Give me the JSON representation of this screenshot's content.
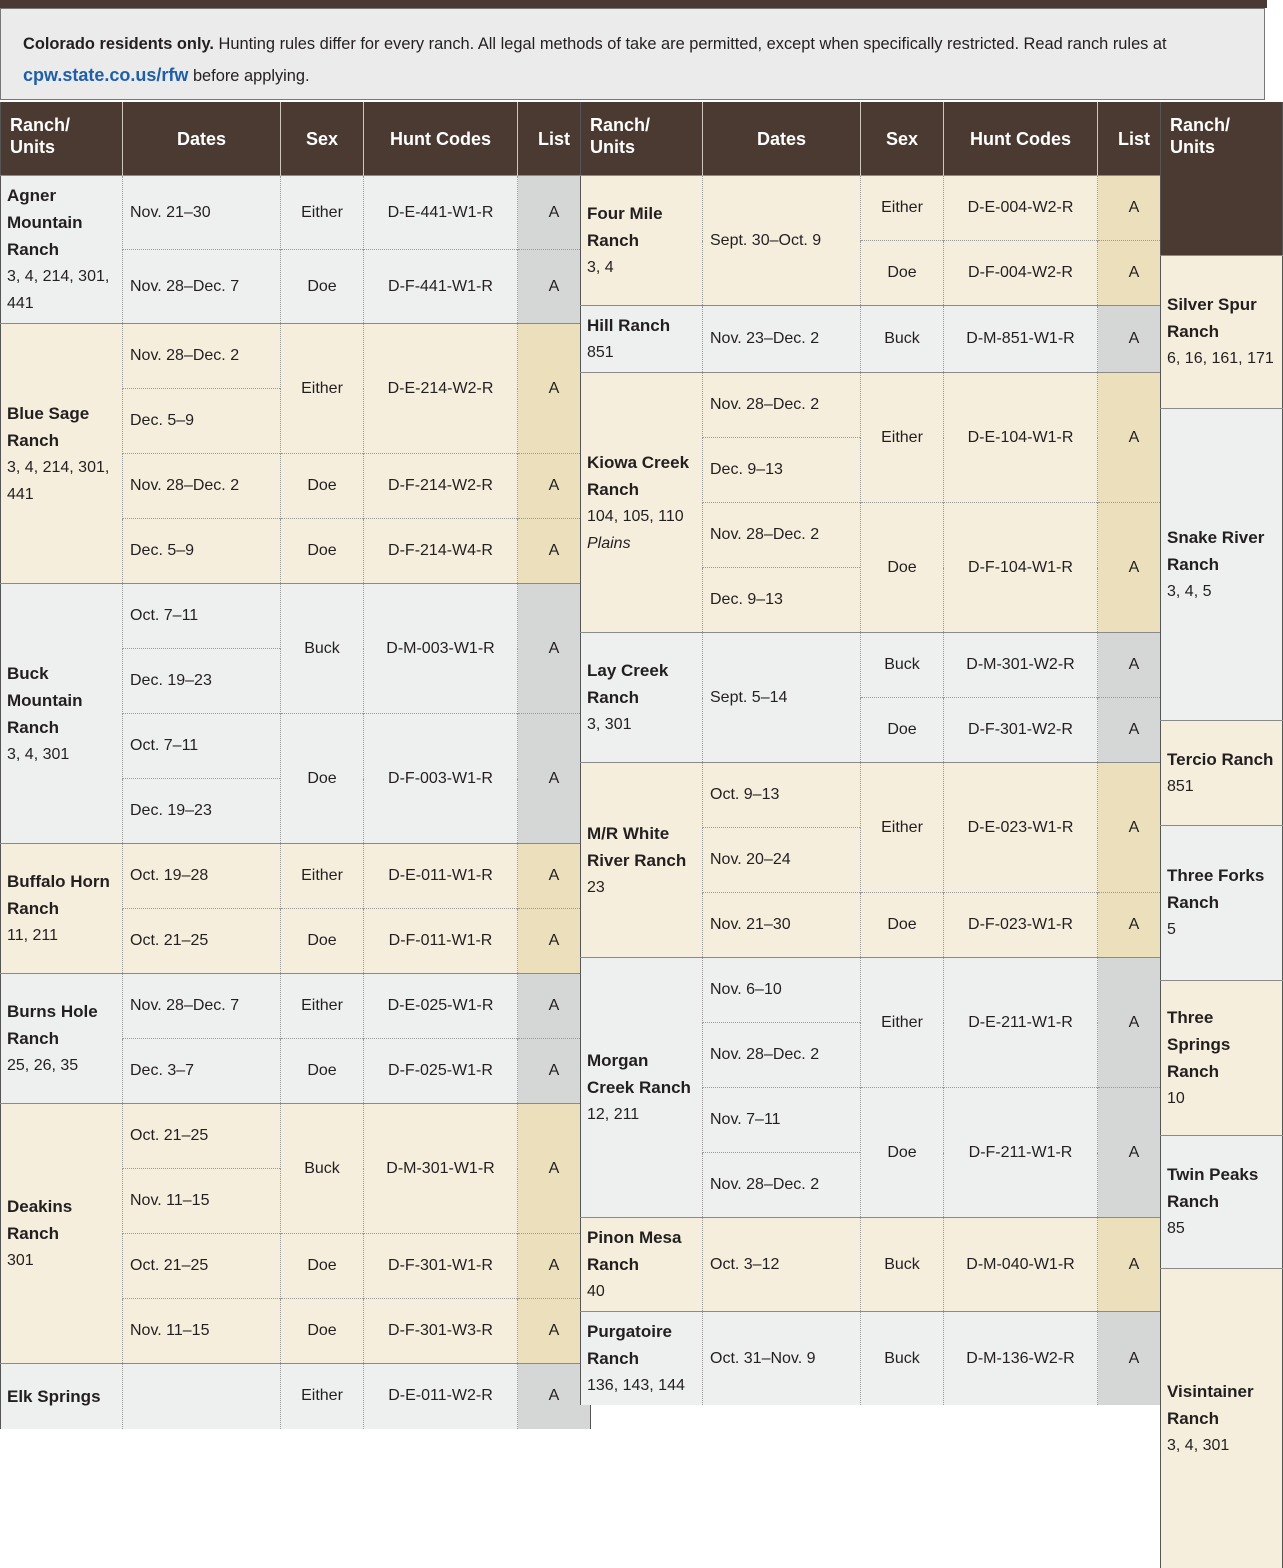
{
  "intro": {
    "lead": "Colorado residents only.",
    "text": "Hunting rules differ for every ranch. All legal methods of take are permitted, except when specifically restricted. Read ranch rules at",
    "link": "cpw.state.co.us/rfw",
    "tail": "before applying."
  },
  "tables": [
    {
      "columns": [
        "Ranch/ Units",
        "Dates",
        "Sex",
        "Hunt Codes",
        "List"
      ],
      "ranches": [
        {
          "name": "Agner Mountain Ranch",
          "units": "3, 4, 214, 301, 441",
          "shade": "gray",
          "hunts": [
            {
              "dates": [
                "Nov. 21–30"
              ],
              "sex": "Either",
              "code": "D-E-441-W1-R",
              "list": "A"
            },
            {
              "dates": [
                "Nov. 28–Dec. 7"
              ],
              "sex": "Doe",
              "code": "D-F-441-W1-R",
              "list": "A"
            }
          ]
        },
        {
          "name": "Blue Sage Ranch",
          "units": "3, 4, 214, 301, 441",
          "shade": "cream",
          "hunts": [
            {
              "dates": [
                "Nov. 28–Dec. 2",
                "Dec. 5–9"
              ],
              "sex": "Either",
              "code": "D-E-214-W2-R",
              "list": "A"
            },
            {
              "dates": [
                "Nov. 28–Dec. 2"
              ],
              "sex": "Doe",
              "code": "D-F-214-W2-R",
              "list": "A"
            },
            {
              "dates": [
                "Dec. 5–9"
              ],
              "sex": "Doe",
              "code": "D-F-214-W4-R",
              "list": "A"
            }
          ]
        },
        {
          "name": "Buck Mountain Ranch",
          "units": "3, 4, 301",
          "shade": "gray",
          "hunts": [
            {
              "dates": [
                "Oct. 7–11",
                "Dec. 19–23"
              ],
              "sex": "Buck",
              "code": "D-M-003-W1-R",
              "list": "A"
            },
            {
              "dates": [
                "Oct. 7–11",
                "Dec. 19–23"
              ],
              "sex": "Doe",
              "code": "D-F-003-W1-R",
              "list": "A"
            }
          ]
        },
        {
          "name": "Buffalo Horn Ranch",
          "units": "11, 211",
          "shade": "cream",
          "hunts": [
            {
              "dates": [
                "Oct. 19–28"
              ],
              "sex": "Either",
              "code": "D-E-011-W1-R",
              "list": "A"
            },
            {
              "dates": [
                "Oct. 21–25"
              ],
              "sex": "Doe",
              "code": "D-F-011-W1-R",
              "list": "A"
            }
          ]
        },
        {
          "name": "Burns Hole Ranch",
          "units": "25, 26, 35",
          "shade": "gray",
          "hunts": [
            {
              "dates": [
                "Nov. 28–Dec. 7"
              ],
              "sex": "Either",
              "code": "D-E-025-W1-R",
              "list": "A"
            },
            {
              "dates": [
                "Dec. 3–7"
              ],
              "sex": "Doe",
              "code": "D-F-025-W1-R",
              "list": "A"
            }
          ]
        },
        {
          "name": "Deakins Ranch",
          "units": "301",
          "shade": "cream",
          "hunts": [
            {
              "dates": [
                "Oct. 21–25",
                "Nov. 11–15"
              ],
              "sex": "Buck",
              "code": "D-M-301-W1-R",
              "list": "A"
            },
            {
              "dates": [
                "Oct. 21–25"
              ],
              "sex": "Doe",
              "code": "D-F-301-W1-R",
              "list": "A"
            },
            {
              "dates": [
                "Nov. 11–15"
              ],
              "sex": "Doe",
              "code": "D-F-301-W3-R",
              "list": "A"
            }
          ]
        },
        {
          "name": "Elk Springs",
          "shade": "gray",
          "hunts": [
            {
              "sex": "Either",
              "code": "D-E-011-W2-R",
              "list": "A"
            }
          ]
        }
      ]
    },
    {
      "columns": [
        "Ranch/ Units",
        "Dates",
        "Sex",
        "Hunt Codes",
        "List"
      ],
      "ranches": [
        {
          "name": "Four Mile Ranch",
          "units": "3, 4",
          "shade": "cream",
          "dates": "Sept. 30–Oct. 9",
          "hunts": [
            {
              "sex": "Either",
              "code": "D-E-004-W2-R",
              "list": "A"
            },
            {
              "sex": "Doe",
              "code": "D-F-004-W2-R",
              "list": "A"
            }
          ]
        },
        {
          "name": "Hill Ranch",
          "units": "851",
          "shade": "gray",
          "hunts": [
            {
              "dates": [
                "Nov. 23–Dec. 2"
              ],
              "sex": "Buck",
              "code": "D-M-851-W1-R",
              "list": "A"
            }
          ]
        },
        {
          "name": "Kiowa Creek Ranch",
          "units": "104, 105, 110",
          "note": "Plains",
          "shade": "cream",
          "hunts": [
            {
              "dates": [
                "Nov. 28–Dec. 2",
                "Dec. 9–13"
              ],
              "sex": "Either",
              "code": "D-E-104-W1-R",
              "list": "A"
            },
            {
              "dates": [
                "Nov. 28–Dec. 2",
                "Dec. 9–13"
              ],
              "sex": "Doe",
              "code": "D-F-104-W1-R",
              "list": "A"
            }
          ]
        },
        {
          "name": "Lay Creek Ranch",
          "units": "3, 301",
          "shade": "gray",
          "dates": "Sept. 5–14",
          "hunts": [
            {
              "sex": "Buck",
              "code": "D-M-301-W2-R",
              "list": "A"
            },
            {
              "sex": "Doe",
              "code": "D-F-301-W2-R",
              "list": "A"
            }
          ]
        },
        {
          "name": "M/R White River Ranch",
          "units": "23",
          "shade": "cream",
          "hunts": [
            {
              "dates": [
                "Oct. 9–13",
                "Nov. 20–24"
              ],
              "sex": "Either",
              "code": "D-E-023-W1-R",
              "list": "A"
            },
            {
              "dates": [
                "Nov. 21–30"
              ],
              "sex": "Doe",
              "code": "D-F-023-W1-R",
              "list": "A"
            }
          ]
        },
        {
          "name": "Morgan Creek Ranch",
          "units": "12, 211",
          "shade": "gray",
          "hunts": [
            {
              "dates": [
                "Nov. 6–10",
                "Nov. 28–Dec. 2"
              ],
              "sex": "Either",
              "code": "D-E-211-W1-R",
              "list": "A"
            },
            {
              "dates": [
                "Nov. 7–11",
                "Nov. 28–Dec. 2"
              ],
              "sex": "Doe",
              "code": "D-F-211-W1-R",
              "list": "A"
            }
          ]
        },
        {
          "name": "Pinon Mesa Ranch",
          "units": "40",
          "shade": "cream",
          "hunts": [
            {
              "dates": [
                "Oct. 3–12"
              ],
              "sex": "Buck",
              "code": "D-M-040-W1-R",
              "list": "A"
            }
          ]
        },
        {
          "name": "Purgatoire Ranch",
          "units": "136, 143, 144",
          "shade": "gray",
          "hunts": [
            {
              "dates": [
                "Oct. 31–Nov. 9"
              ],
              "sex": "Buck",
              "code": "D-M-136-W2-R",
              "list": "A"
            }
          ]
        }
      ]
    },
    {
      "columns": [
        "Ranch/ Units"
      ],
      "ranches": [
        {
          "name": "Silver Spur Ranch",
          "units": "6, 16, 161, 171",
          "shade": "cream"
        },
        {
          "name": "Snake River Ranch",
          "units": "3, 4, 5",
          "shade": "gray"
        },
        {
          "name": "Tercio Ranch",
          "units": "851",
          "shade": "cream"
        },
        {
          "name": "Three Forks Ranch",
          "units": "5",
          "shade": "gray"
        },
        {
          "name": "Three Springs Ranch",
          "units": "10",
          "shade": "cream"
        },
        {
          "name": "Twin Peaks Ranch",
          "units": "85",
          "shade": "gray"
        },
        {
          "name": "Visintainer Ranch",
          "units": "3, 4, 301",
          "shade": "cream"
        }
      ]
    }
  ]
}
